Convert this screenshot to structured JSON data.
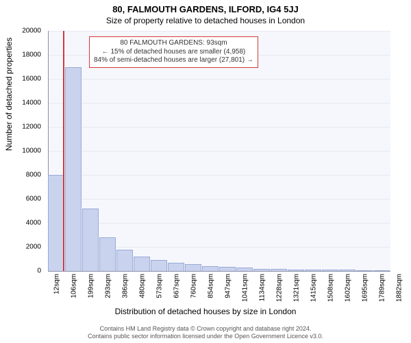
{
  "header": {
    "title": "80, FALMOUTH GARDENS, ILFORD, IG4 5JJ",
    "subtitle": "Size of property relative to detached houses in London"
  },
  "chart": {
    "type": "histogram",
    "plot_bg": "#f6f7fc",
    "grid_color": "#e7e9f2",
    "axis_color": "#8a8fa8",
    "bar_fill": "#c9d3ee",
    "bar_border": "#9aaad6",
    "marker_color": "#d23a3a",
    "ylim": [
      0,
      20000
    ],
    "ytick_step": 2000,
    "ylabel": "Number of detached properties",
    "xlabel": "Distribution of detached houses by size in London",
    "xticks": [
      "12sqm",
      "106sqm",
      "199sqm",
      "293sqm",
      "386sqm",
      "480sqm",
      "573sqm",
      "667sqm",
      "760sqm",
      "854sqm",
      "947sqm",
      "1041sqm",
      "1134sqm",
      "1228sqm",
      "1321sqm",
      "1415sqm",
      "1508sqm",
      "1602sqm",
      "1695sqm",
      "1789sqm",
      "1882sqm"
    ],
    "bars": [
      8000,
      17000,
      5200,
      2800,
      1800,
      1200,
      900,
      700,
      550,
      400,
      320,
      260,
      200,
      170,
      140,
      120,
      100,
      90,
      80,
      70
    ],
    "marker_bin_index": 0,
    "marker_fraction_in_bin": 0.86,
    "callout": {
      "line1": "80 FALMOUTH GARDENS: 93sqm",
      "line2": "← 15% of detached houses are smaller (4,958)",
      "line3": "84% of semi-detached houses are larger (27,801) →",
      "border_color": "#d23a3a",
      "text_color": "#333333"
    },
    "label_fontsize": 12,
    "tick_fontsize": 10
  },
  "footer": {
    "line1": "Contains HM Land Registry data © Crown copyright and database right 2024.",
    "line2": "Contains public sector information licensed under the Open Government Licence v3.0."
  }
}
